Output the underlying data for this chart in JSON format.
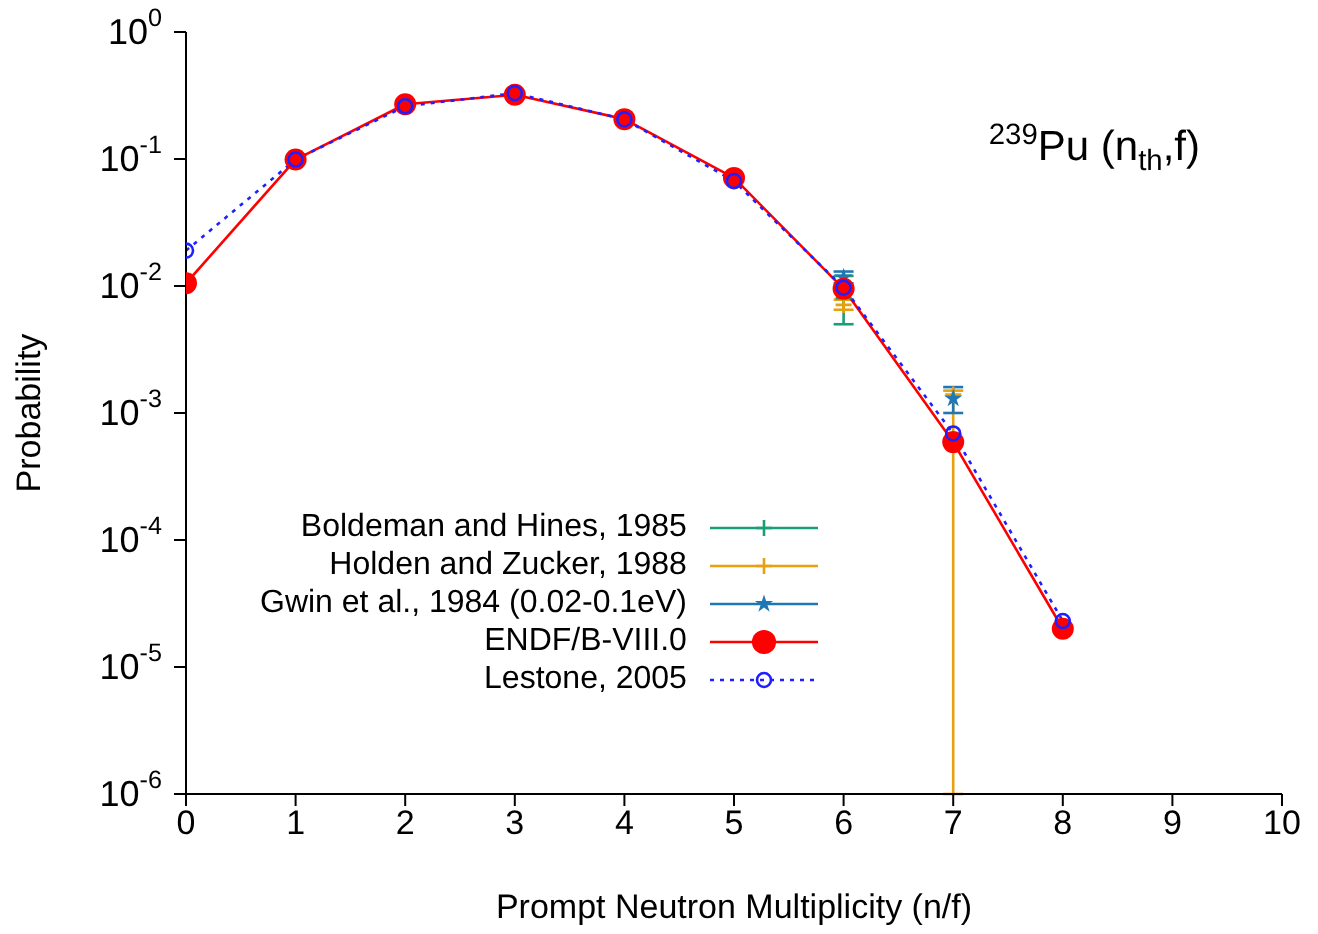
{
  "chart_data": {
    "type": "line",
    "title": "$^{239}$Pu (n$_{th}$,f)",
    "xlabel": "Prompt Neutron Multiplicity (n/f)",
    "ylabel": "Probability",
    "x": [
      0,
      1,
      2,
      3,
      4,
      5,
      6,
      7,
      8
    ],
    "xlim": [
      0,
      10
    ],
    "xticks": [
      0,
      1,
      2,
      3,
      4,
      5,
      6,
      7,
      8,
      9,
      10
    ],
    "ylim": [
      1e-06,
      1
    ],
    "log": "y",
    "yticks": [
      {
        "value": 1e-06,
        "label": "10$^{-6}$"
      },
      {
        "value": 1e-05,
        "label": "10$^{-5}$"
      },
      {
        "value": 0.0001,
        "label": "10$^{-4}$"
      },
      {
        "value": 0.001,
        "label": "10$^{-3}$"
      },
      {
        "value": 0.01,
        "label": "10$^{-2}$"
      },
      {
        "value": 0.1,
        "label": "10$^{-1}$"
      },
      {
        "value": 1,
        "label": "10$^{0}$"
      }
    ],
    "grid": false,
    "legend": "bottom left",
    "series": [
      {
        "name": "Boldeman and Hines, 1985",
        "type": "scatter",
        "marker": "cross",
        "color": "#1a9e77",
        "values": [
          null,
          null,
          null,
          null,
          null,
          null,
          0.008,
          null,
          null
        ],
        "errors": [
          null,
          null,
          null,
          null,
          null,
          null,
          [
            0.005,
            0.012
          ],
          null,
          null
        ]
      },
      {
        "name": "Holden and Zucker, 1988",
        "type": "scatter",
        "marker": "cross",
        "color": "#e6a010",
        "values": [
          null,
          null,
          null,
          null,
          null,
          null,
          0.0071,
          0.0014,
          null
        ],
        "errors": [
          null,
          null,
          null,
          null,
          null,
          null,
          [
            0.0065,
            0.0078
          ],
          [
            1e-06,
            0.0015
          ],
          null
        ]
      },
      {
        "name": "Gwin et al., 1984 (0.02-0.1eV)",
        "type": "scatter",
        "marker": "star",
        "color": "#1f78b4",
        "values": [
          null,
          null,
          null,
          null,
          null,
          null,
          0.0117,
          0.0013,
          null
        ],
        "errors": [
          null,
          null,
          null,
          null,
          null,
          null,
          [
            0.0105,
            0.013
          ],
          [
            0.001,
            0.0016
          ],
          null
        ]
      },
      {
        "name": "ENDF/B-VIII.0",
        "marker": "circle",
        "line_style": "solid",
        "color": "#ff0000",
        "values": [
          0.0105,
          0.099,
          0.27,
          0.32,
          0.206,
          0.071,
          0.0095,
          0.00059,
          2e-05
        ]
      },
      {
        "name": "Lestone, 2005",
        "marker": "open_circle",
        "line_style": "dotted",
        "color": "#2020ff",
        "values": [
          0.019,
          0.099,
          0.26,
          0.33,
          0.205,
          0.067,
          0.0097,
          0.00069,
          2.3e-05
        ]
      }
    ]
  }
}
